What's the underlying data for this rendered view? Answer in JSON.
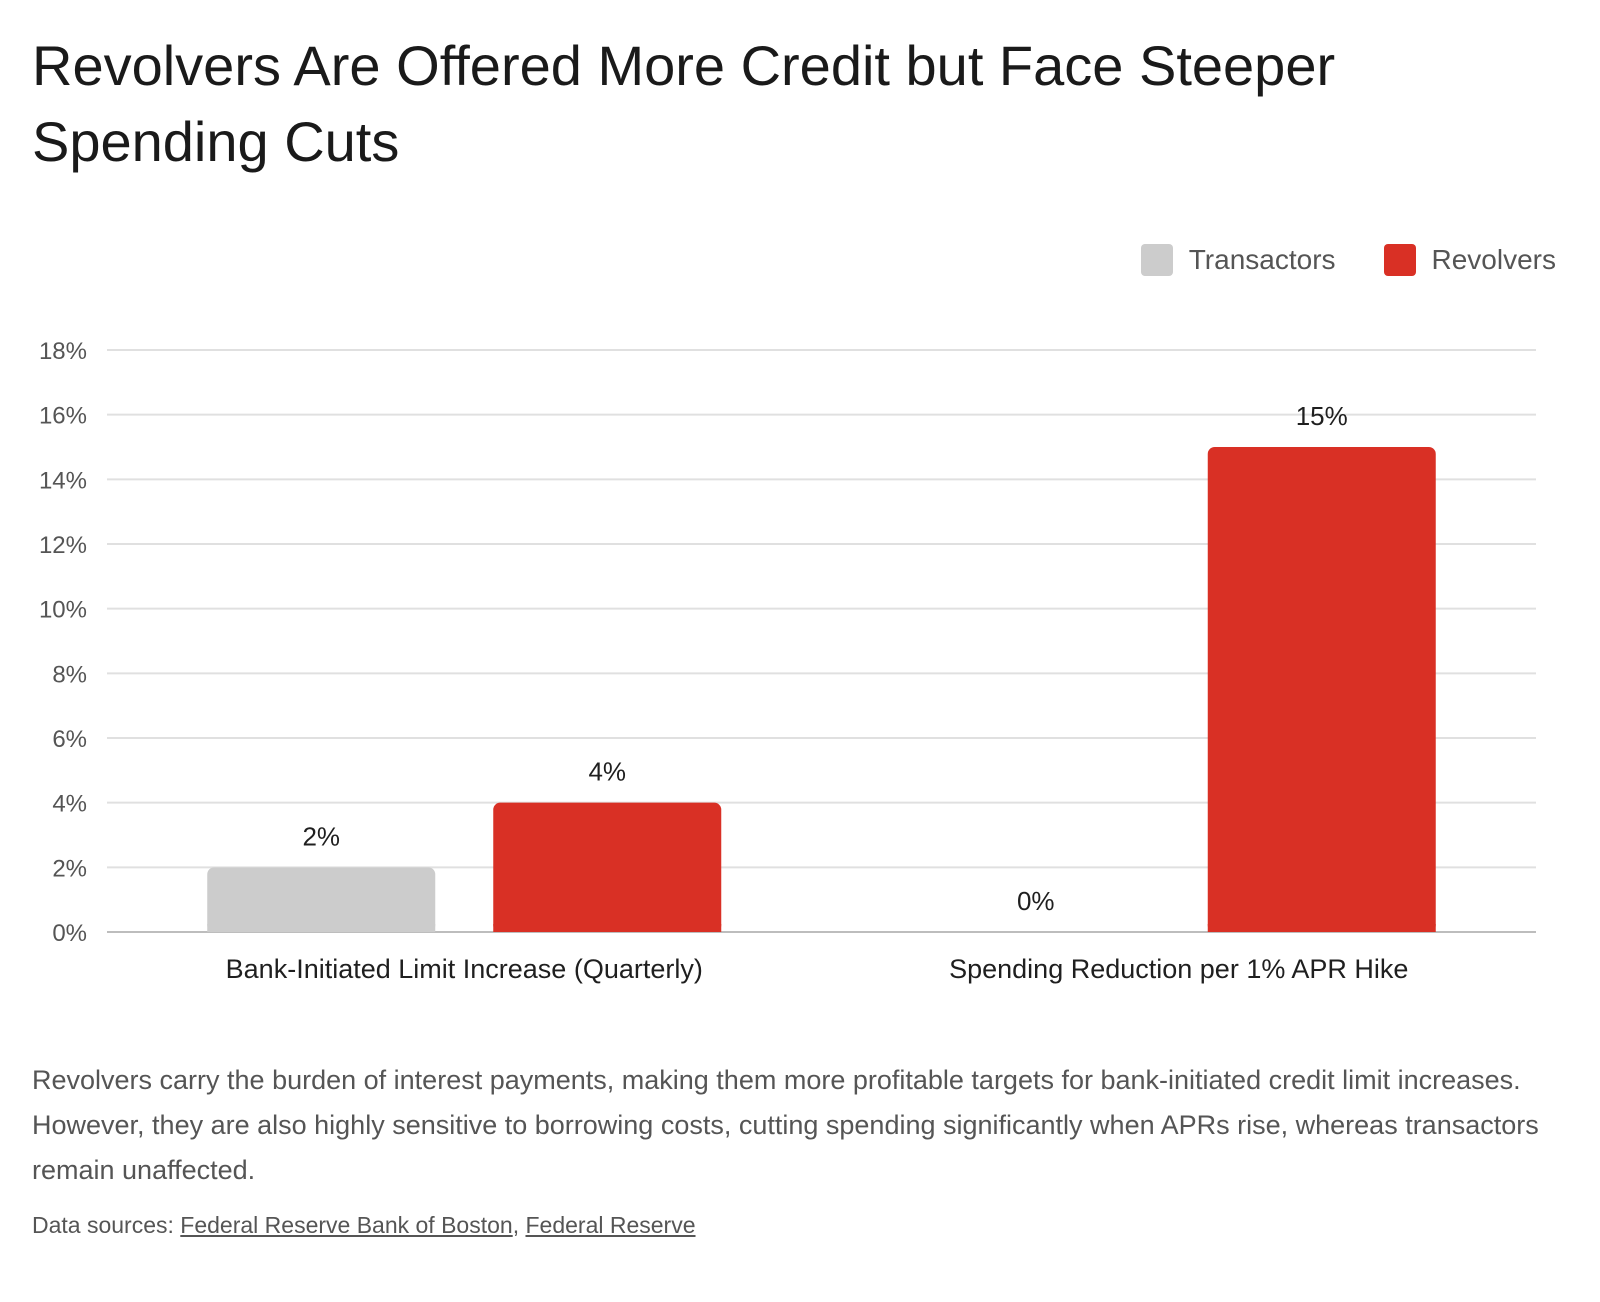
{
  "title": "Revolvers Are Offered More Credit but Face Steeper Spending Cuts",
  "colors": {
    "transactors": "#cccccc",
    "revolvers": "#d93025",
    "grid": "#e0e0e0",
    "axis_text": "#555555"
  },
  "chart_data": {
    "type": "bar",
    "categories": [
      "Bank-Initiated Limit Increase (Quarterly)",
      "Spending Reduction per 1% APR Hike"
    ],
    "series": [
      {
        "name": "Transactors",
        "values": [
          2,
          0
        ],
        "labels": [
          "2%",
          "0%"
        ]
      },
      {
        "name": "Revolvers",
        "values": [
          4,
          15
        ],
        "labels": [
          "4%",
          "15%"
        ]
      }
    ],
    "ylim": [
      0,
      18
    ],
    "yticks": [
      0,
      2,
      4,
      6,
      8,
      10,
      12,
      14,
      16,
      18
    ],
    "ytick_labels": [
      "0%",
      "2%",
      "4%",
      "6%",
      "8%",
      "10%",
      "12%",
      "14%",
      "16%",
      "18%"
    ],
    "xlabel": "",
    "ylabel": "",
    "grid": true,
    "legend_position": "top-right"
  },
  "caption": "Revolvers carry the burden of interest payments, making them more profitable targets for bank-initiated credit limit increases. However, they are also highly sensitive to borrowing costs, cutting spending significantly when APRs rise, whereas transactors remain unaffected.",
  "sources": {
    "prefix": "Data sources: ",
    "links": [
      "Federal Reserve Bank of Boston",
      "Federal Reserve"
    ],
    "separator": ", "
  }
}
